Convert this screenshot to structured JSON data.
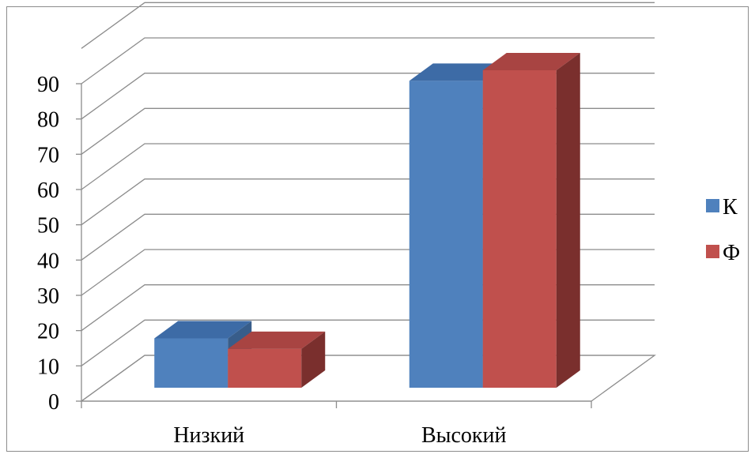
{
  "chart_data": {
    "type": "bar",
    "style": "3d-clustered-column",
    "categories": [
      "Низкий",
      "Высокий"
    ],
    "series": [
      {
        "name": "К",
        "values": [
          14,
          87
        ],
        "color": "#4f81bd",
        "top_color": "#3d6ba6",
        "side_color": "#385d8a"
      },
      {
        "name": "Ф",
        "values": [
          11,
          90
        ],
        "color": "#c0504d",
        "top_color": "#a84442",
        "side_color": "#7a2f2d"
      }
    ],
    "yticks": [
      "0",
      "10",
      "20",
      "30",
      "40",
      "50",
      "60",
      "70",
      "80",
      "90"
    ],
    "ylim": [
      0,
      90
    ],
    "grid": true,
    "legend_position": "right",
    "title": "",
    "xlabel": "",
    "ylabel": ""
  }
}
